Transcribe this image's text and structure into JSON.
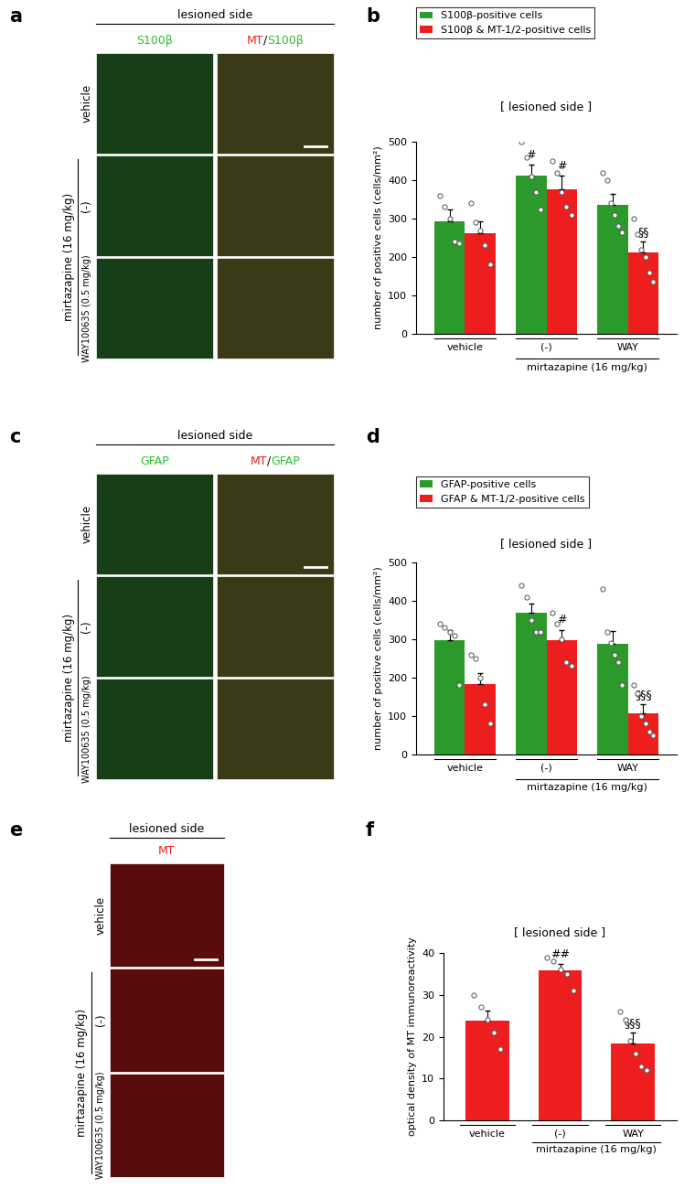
{
  "panel_letters": [
    "a",
    "b",
    "c",
    "d",
    "e",
    "f"
  ],
  "image_panels": [
    {
      "letter": "a",
      "header": "lesioned side",
      "columns": [
        [
          {
            "text": "S100β",
            "color": "#2fbf2f"
          }
        ],
        [
          {
            "text": "MT",
            "color": "#e8201e"
          },
          {
            "text": "/",
            "color": "black"
          },
          {
            "text": "S100β",
            "color": "#2fbf2f"
          }
        ]
      ],
      "rows": [
        "vehicle",
        "(-)",
        "WAY100635 (0.5 mg/kg)"
      ],
      "row_group": {
        "label": "mirtazapine (16 mg/kg)",
        "rows": [
          "(-)",
          "WAY100635 (0.5 mg/kg)"
        ]
      }
    },
    {
      "letter": "c",
      "header": "lesioned side",
      "columns": [
        [
          {
            "text": "GFAP",
            "color": "#2fbf2f"
          }
        ],
        [
          {
            "text": "MT",
            "color": "#e8201e"
          },
          {
            "text": "/",
            "color": "black"
          },
          {
            "text": "GFAP",
            "color": "#2fbf2f"
          }
        ]
      ],
      "rows": [
        "vehicle",
        "(-)",
        "WAY100635 (0.5 mg/kg)"
      ],
      "row_group": {
        "label": "mirtazapine (16 mg/kg)",
        "rows": [
          "(-)",
          "WAY100635 (0.5 mg/kg)"
        ]
      }
    },
    {
      "letter": "e",
      "header": "lesioned side",
      "columns": [
        [
          {
            "text": "MT",
            "color": "#e8201e"
          }
        ]
      ],
      "rows": [
        "vehicle",
        "(-)",
        "WAY100635 (0.5 mg/kg)"
      ],
      "row_group": {
        "label": "mirtazapine (16 mg/kg)",
        "rows": [
          "(-)",
          "WAY100635 (0.5 mg/kg)"
        ]
      }
    }
  ],
  "chart_data": [
    {
      "type": "bar",
      "letter": "b",
      "title": "[ lesioned side ]",
      "y_label": "number of positive cells (cells/mm²)",
      "categories": [
        "vehicle",
        "(-)",
        "WAY"
      ],
      "category_group": {
        "label": "mirtazapine (16 mg/kg)",
        "categories": [
          "(-)",
          "WAY"
        ]
      },
      "series": [
        {
          "name": "S100β-positive cells",
          "color": "#2b9a2b",
          "values": [
            293,
            413,
            336
          ],
          "errors": [
            30,
            28,
            28
          ],
          "points": [
            [
              360,
              330,
              300,
              240,
              235
            ],
            [
              500,
              460,
              410,
              370,
              325
            ],
            [
              420,
              400,
              340,
              310,
              280,
              265
            ]
          ]
        },
        {
          "name": "S100β & MT-1/2-positive cells",
          "color": "#ee1e1e",
          "values": [
            262,
            376,
            212
          ],
          "errors": [
            30,
            35,
            28
          ],
          "points": [
            [
              340,
              290,
              270,
              230,
              180
            ],
            [
              450,
              420,
              370,
              330,
              310
            ],
            [
              300,
              260,
              220,
              200,
              160,
              135
            ]
          ]
        }
      ],
      "annotations": [
        {
          "category": "(-)",
          "series": "S100β-positive cells",
          "label": "#"
        },
        {
          "category": "(-)",
          "series": "S100β & MT-1/2-positive cells",
          "label": "#"
        },
        {
          "category": "WAY",
          "series": "S100β & MT-1/2-positive cells",
          "label": "§§"
        }
      ],
      "ylim": [
        0,
        500
      ],
      "yticks": [
        0,
        100,
        200,
        300,
        400,
        500
      ],
      "legend": "upper left"
    },
    {
      "type": "bar",
      "letter": "d",
      "title": "[ lesioned side ]",
      "y_label": "number of positive cells (cells/mm²)",
      "categories": [
        "vehicle",
        "(-)",
        "WAY"
      ],
      "category_group": {
        "label": "mirtazapine (16 mg/kg)",
        "categories": [
          "(-)",
          "WAY"
        ]
      },
      "series": [
        {
          "name": "GFAP-positive cells",
          "color": "#2b9a2b",
          "values": [
            297,
            368,
            287
          ],
          "errors": [
            28,
            25,
            35
          ],
          "points": [
            [
              340,
              330,
              320,
              310,
              180
            ],
            [
              440,
              410,
              350,
              320,
              320
            ],
            [
              430,
              320,
              290,
              260,
              240,
              180
            ]
          ]
        },
        {
          "name": "GFAP & MT-1/2-positive cells",
          "color": "#ee1e1e",
          "values": [
            183,
            297,
            106
          ],
          "errors": [
            30,
            28,
            25
          ],
          "points": [
            [
              260,
              250,
              200,
              130,
              80
            ],
            [
              370,
              340,
              300,
              240,
              230
            ],
            [
              180,
              160,
              100,
              80,
              60,
              50
            ]
          ]
        }
      ],
      "annotations": [
        {
          "category": "(-)",
          "series": "GFAP & MT-1/2-positive cells",
          "label": "#"
        },
        {
          "category": "WAY",
          "series": "GFAP & MT-1/2-positive cells",
          "label": "§§§"
        }
      ],
      "ylim": [
        0,
        500
      ],
      "yticks": [
        0,
        100,
        200,
        300,
        400,
        500
      ],
      "legend": "upper left"
    },
    {
      "type": "bar",
      "letter": "f",
      "title": "[ lesioned side ]",
      "y_label": "optical density of MT immunoreactivity",
      "categories": [
        "vehicle",
        "(-)",
        "WAY"
      ],
      "category_group": {
        "label": "mirtazapine (16 mg/kg)",
        "categories": [
          "(-)",
          "WAY"
        ]
      },
      "color": "#ee1e1e",
      "values": [
        23.8,
        35.8,
        18.3
      ],
      "errors": [
        2.5,
        1.5,
        2.7
      ],
      "points": [
        [
          30,
          27,
          24,
          21,
          17
        ],
        [
          39,
          38,
          36,
          35,
          31
        ],
        [
          26,
          24,
          19,
          16,
          13,
          12
        ]
      ],
      "annotations": [
        {
          "category": "(-)",
          "label": "##"
        },
        {
          "category": "WAY",
          "label": "§§§"
        }
      ],
      "ylim": [
        0,
        40
      ],
      "yticks": [
        0,
        10,
        20,
        30,
        40
      ]
    }
  ]
}
